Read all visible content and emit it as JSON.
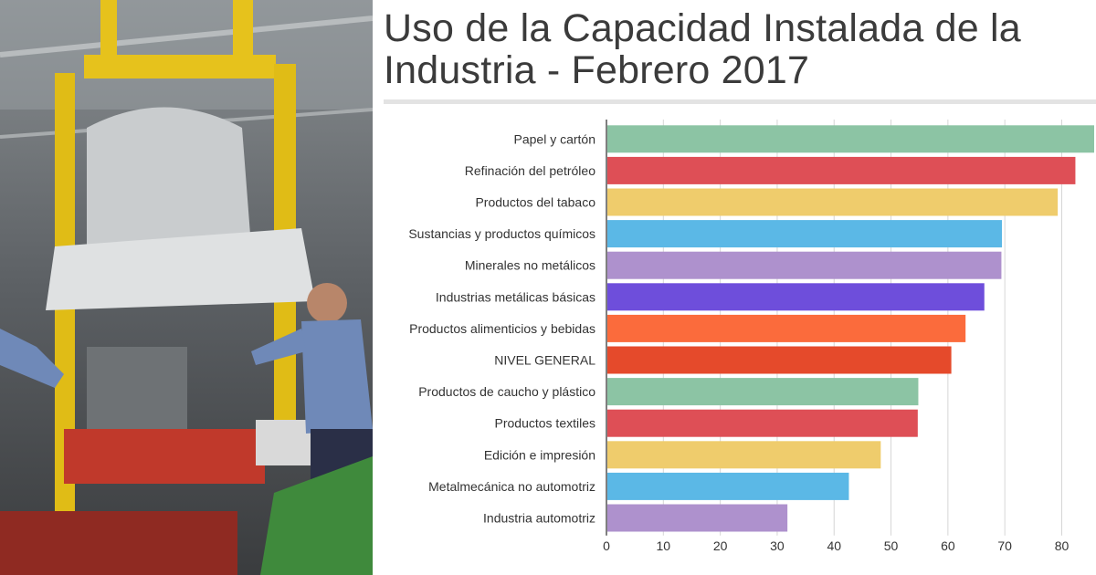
{
  "photo": {
    "icon": "car-assembly-line-photo"
  },
  "chart_data": {
    "type": "bar",
    "orientation": "horizontal",
    "title": "Uso de la Capacidad Instalada de la Industria - Febrero 2017",
    "categories": [
      "Papel y cartón",
      "Refinación del petróleo",
      "Productos del tabaco",
      "Sustancias y productos químicos",
      "Minerales no metálicos",
      "Industrias metálicas básicas",
      "Productos alimenticios y bebidas",
      "NIVEL GENERAL",
      "Productos de caucho y plástico",
      "Productos textiles",
      "Edición e impresión",
      "Metalmecánica no automotriz",
      "Industria automotriz"
    ],
    "values": [
      85.7,
      82.4,
      79.3,
      69.5,
      69.4,
      66.4,
      63.1,
      60.6,
      54.8,
      54.7,
      48.2,
      42.6,
      31.8
    ],
    "colors": [
      "#8cc4a4",
      "#de4f56",
      "#efcc6c",
      "#5bb8e6",
      "#ae91cd",
      "#6e4edb",
      "#fb6b3c",
      "#e54a2b",
      "#8cc4a4",
      "#de4f56",
      "#efcc6c",
      "#5bb8e6",
      "#ae91cd"
    ],
    "xlim": [
      0,
      85.7
    ],
    "xticks": [
      "0",
      "10",
      "20",
      "30",
      "40",
      "50",
      "60",
      "70",
      "80"
    ],
    "grid": true,
    "legend": "none"
  }
}
